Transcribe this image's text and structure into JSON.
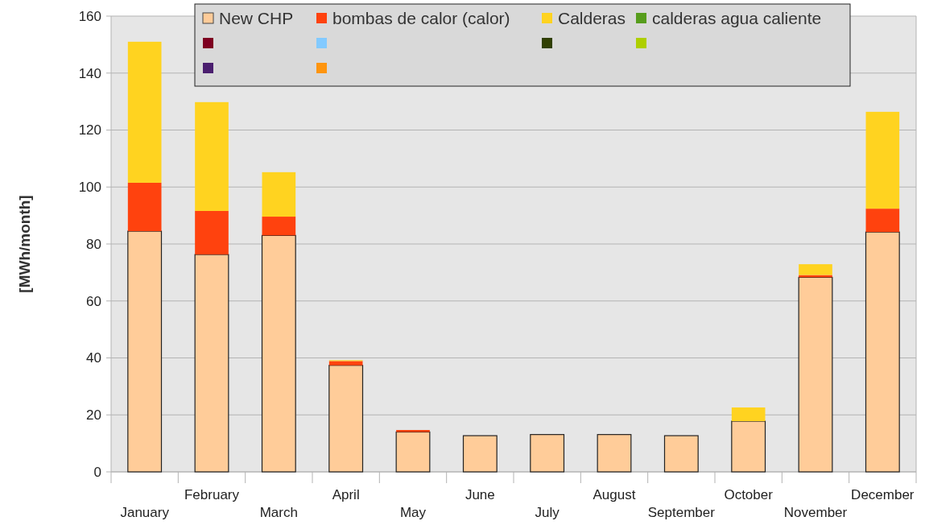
{
  "chart_data": {
    "type": "bar",
    "stacked": true,
    "ylabel": "[MWh/month]",
    "categories": [
      "January",
      "February",
      "March",
      "April",
      "May",
      "June",
      "July",
      "August",
      "September",
      "October",
      "November",
      "December"
    ],
    "series": [
      {
        "name": "New CHP",
        "color": "#ffcc99",
        "values": [
          84.5,
          76.3,
          83,
          37.4,
          14,
          12.7,
          13.1,
          13.1,
          12.7,
          17.8,
          68.3,
          84.2
        ]
      },
      {
        "name": "bombas de calor (calor)",
        "color": "#ff420e",
        "values": [
          17,
          15.3,
          6.6,
          1.5,
          0.7,
          0,
          0,
          0,
          0,
          0,
          0.8,
          8.2
        ]
      },
      {
        "name": "Calderas",
        "color": "#ffd320",
        "values": [
          49.5,
          38.2,
          15.6,
          0.3,
          0,
          0,
          0,
          0,
          0,
          4.8,
          3.8,
          34
        ]
      },
      {
        "name": "calderas agua caliente",
        "color": "#579d1c",
        "values": [
          0,
          0,
          0,
          0,
          0,
          0,
          0,
          0,
          0,
          0,
          0,
          0
        ]
      },
      {
        "color": "#7e0021",
        "values": [
          0,
          0,
          0,
          0,
          0,
          0,
          0,
          0,
          0,
          0,
          0,
          0
        ]
      },
      {
        "color": "#83caff",
        "values": [
          0,
          0,
          0,
          0,
          0,
          0,
          0,
          0,
          0,
          0,
          0,
          0
        ]
      },
      {
        "color": "#314004",
        "values": [
          0,
          0,
          0,
          0,
          0,
          0,
          0,
          0,
          0,
          0,
          0,
          0
        ]
      },
      {
        "color": "#aecf00",
        "values": [
          0,
          0,
          0,
          0,
          0,
          0,
          0,
          0,
          0,
          0,
          0,
          0
        ]
      },
      {
        "color": "#4b1f6f",
        "values": [
          0,
          0,
          0,
          0,
          0,
          0,
          0,
          0,
          0,
          0,
          0,
          0
        ]
      },
      {
        "color": "#ff950e",
        "values": [
          0,
          0,
          0,
          0,
          0,
          0,
          0,
          0,
          0,
          0,
          0,
          0
        ]
      }
    ],
    "ylim": [
      0,
      160
    ],
    "yticks": [
      0,
      20,
      40,
      60,
      80,
      100,
      120,
      140,
      160
    ],
    "grid": "y",
    "legend": "top"
  }
}
